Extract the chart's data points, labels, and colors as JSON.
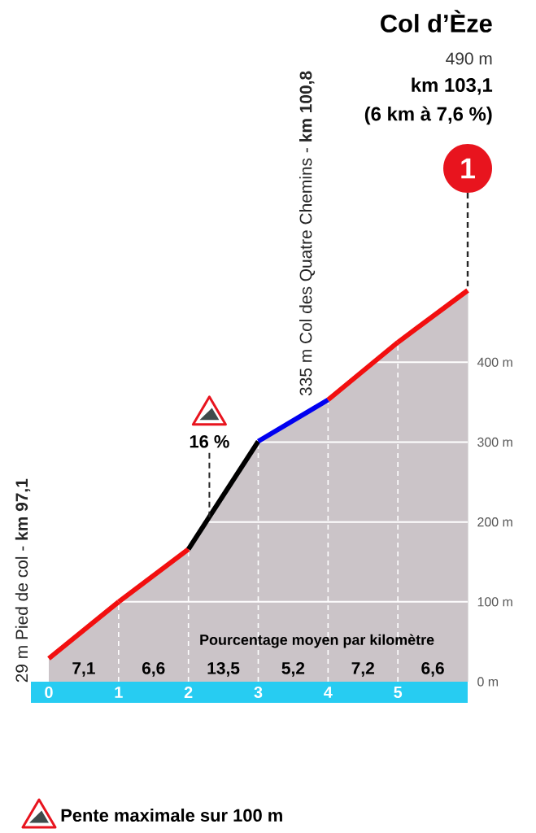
{
  "chart_data": {
    "type": "area",
    "title": "Col d’Èze",
    "series": [
      {
        "color": "#cbc4c8",
        "x": [
          0,
          1,
          2,
          3,
          4,
          5,
          6
        ],
        "values": [
          29,
          100,
          166,
          301,
          353,
          425,
          490
        ],
        "colors": [
          "#f20f0f",
          "#f20f0f",
          "#f20f0f",
          "#000000",
          "#0000f0",
          "#f20f0f",
          "#f20f0f"
        ]
      }
    ],
    "xlim": [
      0,
      6
    ],
    "xticks": [
      0,
      1,
      2,
      3,
      4,
      5
    ],
    "ylim": [
      0,
      490
    ],
    "yticks": [
      {
        "value": 0,
        "label": "0 m"
      },
      {
        "value": 100,
        "label": "100 m"
      },
      {
        "value": 200,
        "label": "200 m"
      },
      {
        "value": 300,
        "label": "300 m"
      },
      {
        "value": 400,
        "label": "400 m"
      }
    ],
    "grid": true,
    "annotations": [
      "490 m",
      "km 103,1",
      "(6 km à 7,6 %)",
      {
        "text": "1",
        "x": 6,
        "y": 490
      },
      {
        "text": "335 m Col des Quatre Chemins - **km 100,8**",
        "x": 3.7,
        "y": 335
      },
      {
        "text": "29 m Pied de col - **km 97,1**",
        "x": 0,
        "y": 29
      },
      {
        "text": "16 %",
        "x": 2.3,
        "y": 206
      },
      "Pourcentage moyen par kilomètre",
      {
        "text": "7,1",
        "x": 0.5,
        "y": 0
      },
      {
        "text": "6,6",
        "x": 1.5,
        "y": 0
      },
      {
        "text": "13,5",
        "x": 2.5,
        "y": 0
      },
      {
        "text": "5,2",
        "x": 3.5,
        "y": 0
      },
      {
        "text": "7,2",
        "x": 4.5,
        "y": 0
      },
      {
        "text": "6,6",
        "x": 5.5,
        "y": 0
      },
      "Pente maximale sur 100 m"
    ]
  }
}
